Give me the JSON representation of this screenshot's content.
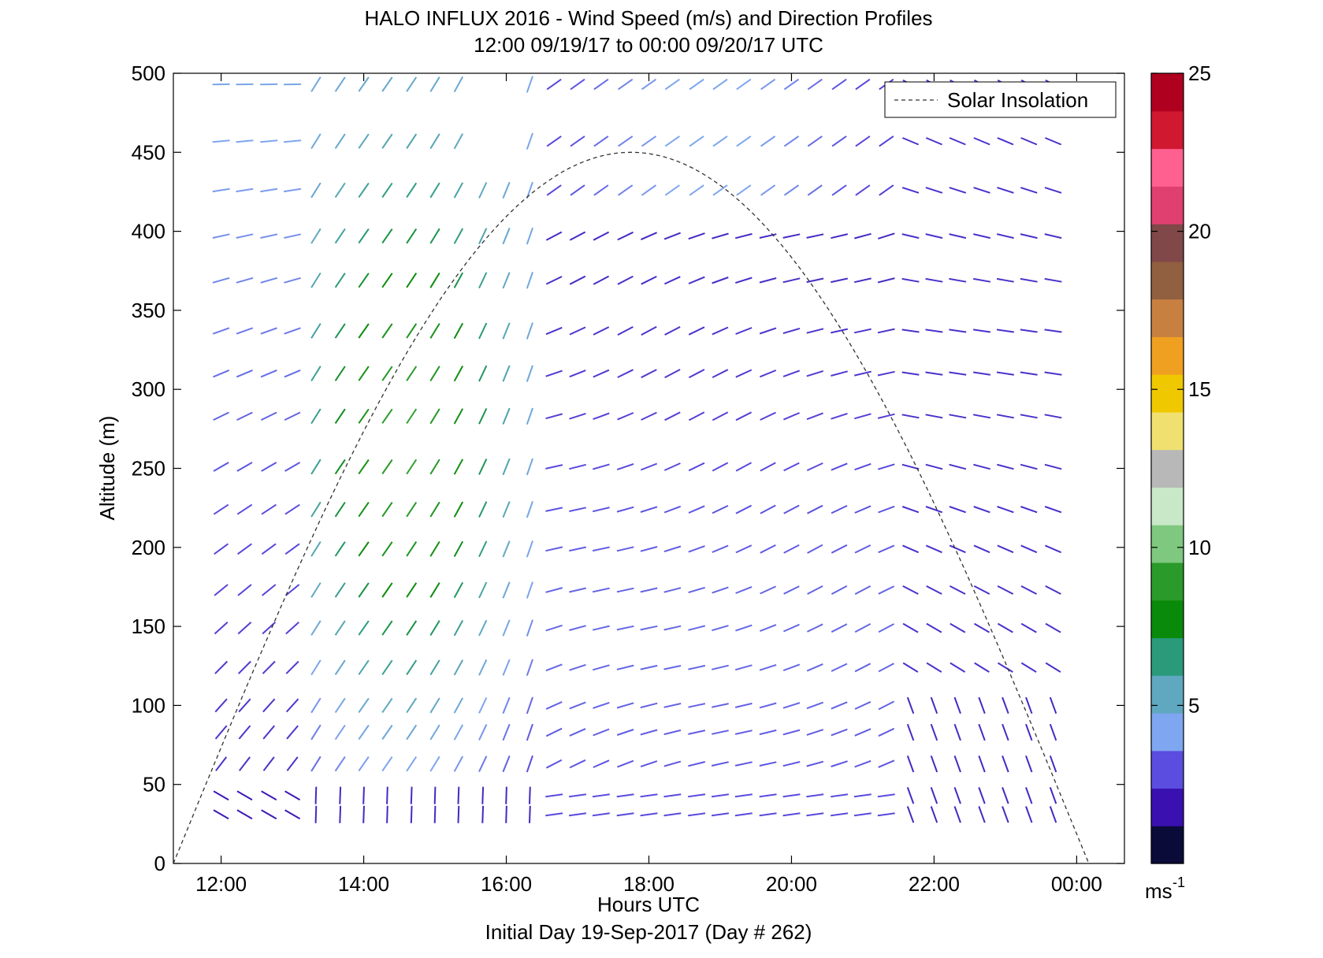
{
  "chart_data": {
    "type": "scatter",
    "title": "HALO INFLUX 2016 - Wind Speed (m/s) and Direction Profiles",
    "subtitle": "12:00 09/19/17 to 00:00 09/20/17  UTC",
    "xlabel": "Hours UTC",
    "ylabel": "Altitude (m)",
    "footer": "Initial Day 19-Sep-2017 (Day # 262)",
    "x_ticks": [
      "12:00",
      "14:00",
      "16:00",
      "18:00",
      "20:00",
      "22:00",
      "00:00"
    ],
    "x_tick_hours": [
      12,
      14,
      16,
      18,
      20,
      22,
      24
    ],
    "xlim": [
      11.33,
      24.67
    ],
    "y_ticks": [
      "0",
      "50",
      "100",
      "150",
      "200",
      "250",
      "300",
      "350",
      "400",
      "450",
      "500"
    ],
    "ylim": [
      0,
      500
    ],
    "legend": {
      "entry": "Solar Insolation",
      "placement": "top-right",
      "style": "dashed"
    },
    "colorbar": {
      "ticks": [
        "5",
        "10",
        "15",
        "20",
        "25"
      ],
      "range": [
        0,
        25
      ],
      "unit_label": "ms",
      "unit_exponent": "-1",
      "colors": [
        "#0b0b3a",
        "#3a10b0",
        "#5a4de0",
        "#7fa6f0",
        "#5fa8c0",
        "#2a9a7a",
        "#0a8a0a",
        "#2a9a2a",
        "#7fc87f",
        "#c8e8c8",
        "#b8b8b8",
        "#f0e070",
        "#f0c800",
        "#f0a020",
        "#c88040",
        "#906040",
        "#804848",
        "#e04070",
        "#ff6090",
        "#d01830",
        "#b00020"
      ]
    },
    "solar_insolation": {
      "sunrise_hour": 11.33,
      "noon_hour": 17.75,
      "sunset_hour": 24.17,
      "peak_altitude": 450
    },
    "wind_rows_altitude": [
      31,
      43,
      63,
      83,
      100,
      124,
      149,
      173,
      199,
      224,
      251,
      283,
      310,
      337,
      369,
      397,
      426,
      457,
      493
    ],
    "wind_columns_hour": [
      12.0,
      12.33,
      12.67,
      13.0,
      13.33,
      13.67,
      14.0,
      14.33,
      14.67,
      15.0,
      15.33,
      15.67,
      16.0,
      16.33,
      16.67,
      17.0,
      17.33,
      17.67,
      18.0,
      18.33,
      18.67,
      19.0,
      19.33,
      19.67,
      20.0,
      20.33,
      20.67,
      21.0,
      21.33,
      21.67,
      22.0,
      22.33,
      22.67,
      23.0,
      23.33,
      23.67
    ],
    "wind_units": "m/s"
  }
}
